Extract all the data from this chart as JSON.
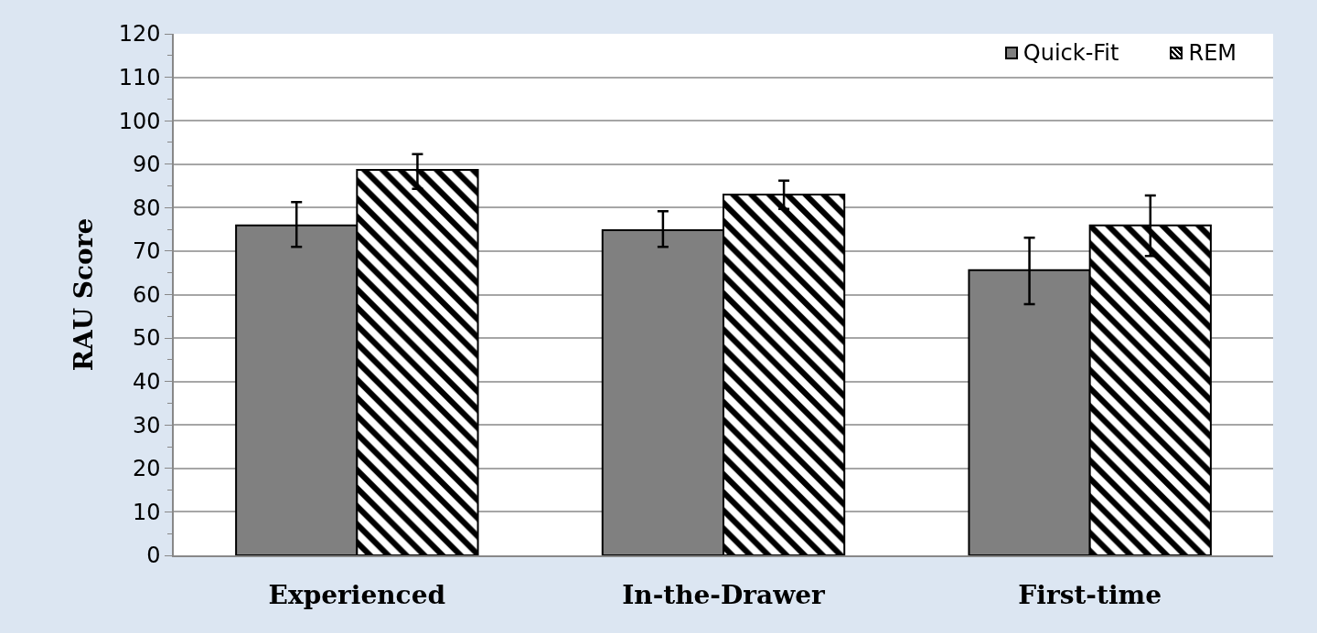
{
  "chart_data": {
    "type": "bar",
    "ylabel": "RAU Score",
    "categories": [
      "Experienced",
      "In-the-Drawer",
      "First-time"
    ],
    "series": [
      {
        "name": "Quick-Fit",
        "color": "#808080",
        "values": [
          75.9,
          74.8,
          65.6
        ],
        "errors": [
          [
            71.0,
            81.3
          ],
          [
            71.0,
            79.2
          ],
          [
            57.8,
            73.1
          ]
        ]
      },
      {
        "name": "REM",
        "color": "#000000",
        "values": [
          88.7,
          83.0,
          75.9
        ],
        "errors": [
          [
            84.3,
            92.3
          ],
          [
            79.7,
            86.2
          ],
          [
            68.9,
            82.8
          ]
        ]
      }
    ],
    "ylim": [
      0,
      120
    ],
    "yticks": [
      0,
      10,
      20,
      30,
      40,
      50,
      60,
      70,
      80,
      90,
      100,
      110,
      120
    ],
    "grid": "y",
    "legend": "top right"
  }
}
